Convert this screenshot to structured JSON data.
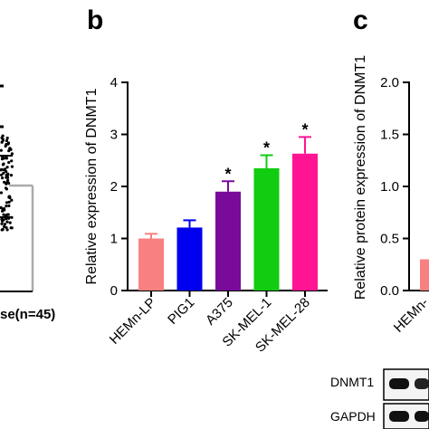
{
  "panels": {
    "b_label": "b",
    "c_label": "c"
  },
  "left_panel": {
    "group_label": "se(n=45)"
  },
  "chart_data": [
    {
      "type": "bar",
      "panel": "b",
      "ylabel": "Relative expression of DNMT1",
      "ylim": [
        0,
        4
      ],
      "yticks": [
        "0",
        "1",
        "2",
        "3",
        "4"
      ],
      "categories": [
        "HEMn-LP",
        "PIG1",
        "A375",
        "SK-MEL-1",
        "SK-MEL-28"
      ],
      "values": [
        1.0,
        1.21,
        1.9,
        2.35,
        2.63
      ],
      "errors": [
        0.09,
        0.14,
        0.2,
        0.25,
        0.32
      ],
      "significance": [
        "",
        "",
        "*",
        "*",
        "*"
      ],
      "colors": [
        "#f88080",
        "#0000ee",
        "#7a0a9a",
        "#11cc11",
        "#ff1493"
      ]
    },
    {
      "type": "bar",
      "panel": "c",
      "ylabel": "Relative protein expression of DNMT1",
      "ylim": [
        0,
        2.0
      ],
      "yticks": [
        "0.0",
        "0.5",
        "1.0",
        "1.5",
        "2.0"
      ],
      "categories": [
        "HEMn-"
      ],
      "values": [
        0.3
      ],
      "colors": [
        "#f88080"
      ]
    }
  ],
  "blot": {
    "rows": [
      "DNMT1",
      "GAPDH"
    ]
  }
}
